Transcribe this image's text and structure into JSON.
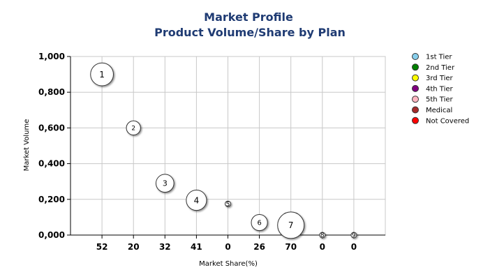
{
  "chart_data": {
    "type": "scatter",
    "title": "Market Profile",
    "subtitle": "Product Volume/Share by Plan",
    "xlabel": "Market Share(%)",
    "ylabel": "Market Volume",
    "ylim": [
      0,
      1
    ],
    "y_ticks": [
      "1,000",
      "0,800",
      "0,600",
      "0,400",
      "0,200",
      "0,000"
    ],
    "categories": [
      "52",
      "20",
      "32",
      "41",
      "0",
      "26",
      "70",
      "0",
      "0"
    ],
    "grid": true,
    "legend_position": "right",
    "legend": [
      {
        "label": "1st Tier",
        "color": "#87ceeb"
      },
      {
        "label": "2nd Tier",
        "color": "#008000"
      },
      {
        "label": "3rd Tier",
        "color": "#ffff00"
      },
      {
        "label": "4th Tier",
        "color": "#800080"
      },
      {
        "label": "5th Tier",
        "color": "#ffb6c1"
      },
      {
        "label": "Medical",
        "color": "#a52a2a"
      },
      {
        "label": "Not Covered",
        "color": "#ff0000"
      }
    ],
    "points": [
      {
        "label": "1",
        "category_index": 0,
        "y": 0.9,
        "size": 52
      },
      {
        "label": "2",
        "category_index": 1,
        "y": 0.6,
        "size": 20
      },
      {
        "label": "3",
        "category_index": 2,
        "y": 0.29,
        "size": 32
      },
      {
        "label": "4",
        "category_index": 3,
        "y": 0.195,
        "size": 41
      },
      {
        "label": "5",
        "category_index": 4,
        "y": 0.175,
        "size": 0
      },
      {
        "label": "6",
        "category_index": 5,
        "y": 0.07,
        "size": 26
      },
      {
        "label": "7",
        "category_index": 6,
        "y": 0.055,
        "size": 70
      },
      {
        "label": "8",
        "category_index": 7,
        "y": 0.0,
        "size": 0
      },
      {
        "label": "9",
        "category_index": 8,
        "y": 0.0,
        "size": 0
      }
    ]
  }
}
